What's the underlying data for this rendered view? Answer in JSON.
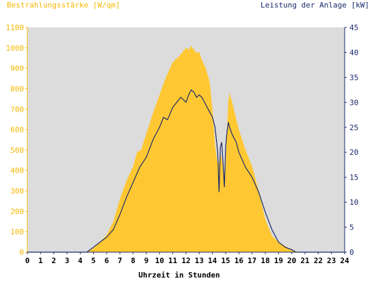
{
  "chart_data": {
    "type": "area",
    "title": "",
    "ylabel": "Bestrahlungsstärke [W/qm]",
    "ylabel_right": "Leistung der Anlage [kW]",
    "xlabel": "Uhrzeit in Stunden",
    "xlim": [
      0,
      24
    ],
    "ylim": [
      0,
      1100
    ],
    "ylim_right": [
      0,
      45
    ],
    "x_ticks": [
      0,
      1,
      2,
      3,
      4,
      5,
      6,
      7,
      8,
      9,
      10,
      11,
      12,
      13,
      14,
      15,
      16,
      17,
      18,
      19,
      20,
      21,
      22,
      23,
      24
    ],
    "y_ticks": [
      0,
      100,
      200,
      300,
      400,
      500,
      600,
      700,
      800,
      900,
      1000,
      1100
    ],
    "y_ticks_right": [
      0,
      5,
      10,
      15,
      20,
      25,
      30,
      35,
      40,
      45
    ],
    "grid": false,
    "colors": {
      "irradiance": "#ffc832",
      "power": "#1a2a6c",
      "plot_background": "#dcdcdc",
      "left_axis": "#f5b800",
      "right_axis": "#1a2a6c"
    },
    "series": [
      {
        "name": "Bestrahlungsstärke [W/qm]",
        "axis": "left",
        "x": [
          0,
          4.5,
          5,
          5.5,
          6,
          6.5,
          7,
          7.5,
          8,
          8.3,
          8.6,
          9,
          9.5,
          10,
          10.5,
          11,
          11.5,
          12,
          12.2,
          12.4,
          12.6,
          12.8,
          13,
          13.2,
          13.5,
          13.8,
          14,
          14.2,
          14.4,
          14.5,
          14.6,
          14.7,
          14.8,
          14.9,
          15,
          15.1,
          15.2,
          15.3,
          15.5,
          15.8,
          16,
          16.5,
          17,
          17.5,
          18,
          18.5,
          19,
          19.5,
          20,
          20.3,
          20.6,
          21,
          24
        ],
        "values": [
          0,
          0,
          20,
          50,
          85,
          150,
          260,
          350,
          420,
          490,
          500,
          580,
          680,
          770,
          860,
          930,
          960,
          1000,
          990,
          1010,
          990,
          975,
          980,
          940,
          900,
          830,
          700,
          520,
          430,
          440,
          480,
          460,
          420,
          380,
          420,
          600,
          740,
          780,
          730,
          650,
          600,
          500,
          420,
          300,
          160,
          80,
          50,
          30,
          10,
          5,
          0,
          0,
          0
        ]
      },
      {
        "name": "Leistung der Anlage [kW]",
        "axis": "right",
        "x": [
          0,
          4.5,
          5,
          5.5,
          6,
          6.5,
          7,
          7.5,
          8,
          8.5,
          9,
          9.5,
          10,
          10.3,
          10.6,
          11,
          11.3,
          11.6,
          12,
          12.2,
          12.4,
          12.6,
          12.8,
          13,
          13.2,
          13.4,
          13.7,
          14,
          14.2,
          14.4,
          14.5,
          14.6,
          14.7,
          14.8,
          14.9,
          15,
          15.1,
          15.2,
          15.3,
          15.5,
          15.8,
          16,
          16.5,
          17,
          17.5,
          18,
          18.5,
          19,
          19.5,
          20,
          20.3,
          20.6,
          21,
          24
        ],
        "values": [
          0,
          0,
          1,
          2,
          3,
          4.5,
          7.5,
          11,
          14,
          17,
          19,
          22.5,
          25,
          27,
          26.5,
          29,
          30,
          31,
          30,
          31.5,
          32.5,
          32,
          31,
          31.5,
          31,
          30,
          28.5,
          27,
          25,
          20,
          12,
          21,
          22,
          18,
          13,
          21,
          24,
          26,
          25,
          23.5,
          22,
          20,
          17,
          15,
          12,
          8,
          4.5,
          2,
          1,
          0.5,
          0,
          0,
          0,
          0
        ]
      }
    ]
  }
}
